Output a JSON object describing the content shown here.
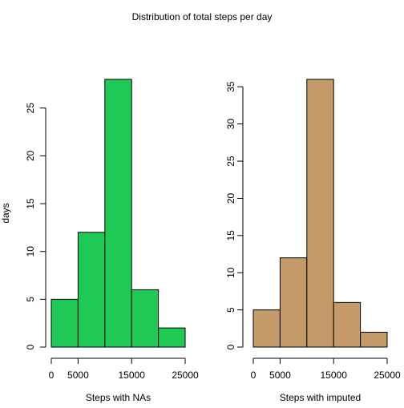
{
  "title": "Distribution of total steps per day",
  "chart_data": [
    {
      "type": "bar",
      "subtype": "histogram",
      "title": "",
      "xlabel": "Steps with NAs",
      "ylabel": "days",
      "bin_edges": [
        0,
        5000,
        10000,
        15000,
        20000,
        25000
      ],
      "values": [
        5,
        12,
        28,
        6,
        2
      ],
      "xticks": [
        0,
        5000,
        15000,
        25000
      ],
      "xtick_labels": [
        "0",
        "5000",
        "15000",
        "25000"
      ],
      "yticks": [
        0,
        5,
        10,
        15,
        20,
        25
      ],
      "xlim": [
        0,
        25000
      ],
      "ylim": [
        0,
        28
      ],
      "bar_color": "#1ec955",
      "grid": false,
      "legend": "none"
    },
    {
      "type": "bar",
      "subtype": "histogram",
      "title": "",
      "xlabel": "Steps with imputed",
      "ylabel": "",
      "bin_edges": [
        0,
        5000,
        10000,
        15000,
        20000,
        25000
      ],
      "values": [
        5,
        12,
        36,
        6,
        2
      ],
      "xticks": [
        0,
        5000,
        15000,
        25000
      ],
      "xtick_labels": [
        "0",
        "5000",
        "15000",
        "25000"
      ],
      "yticks": [
        0,
        5,
        10,
        15,
        20,
        25,
        30,
        35
      ],
      "xlim": [
        0,
        25000
      ],
      "ylim": [
        0,
        36
      ],
      "bar_color": "#c49a68",
      "grid": false,
      "legend": "none"
    }
  ]
}
